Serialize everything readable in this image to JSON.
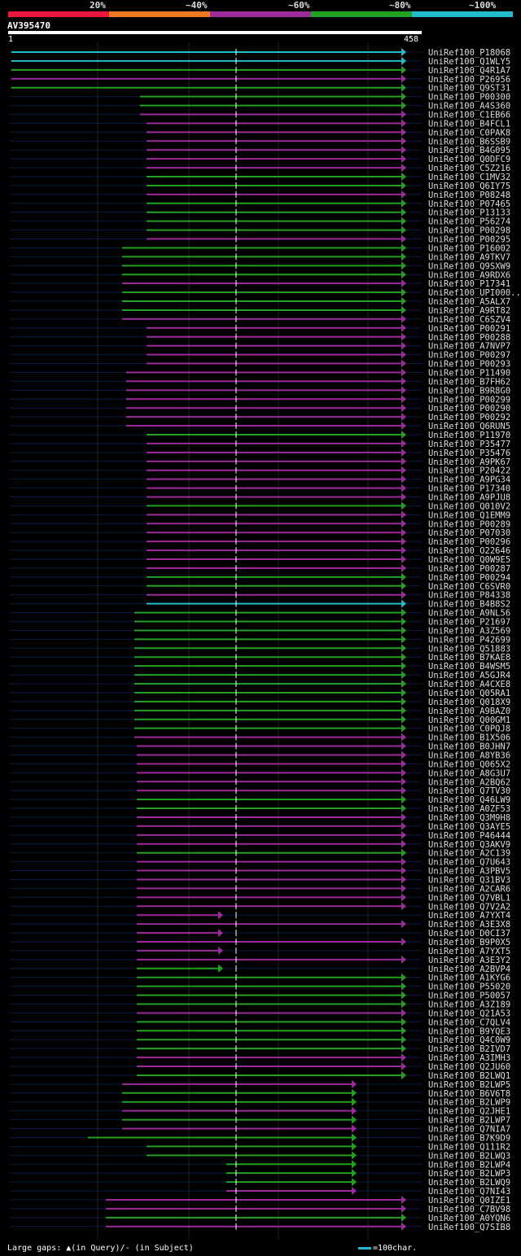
{
  "legend": {
    "labels": [
      "20%",
      "~40%",
      "~60%",
      "~80%",
      "~100%"
    ],
    "colors": [
      "#e8163c",
      "#f07820",
      "#9b2a9b",
      "#22a022",
      "#22bbcc"
    ]
  },
  "query": {
    "id": "AV395470",
    "start": "1",
    "end": "458"
  },
  "footer": {
    "note": "Large gaps: ▲(in Query)/- (in Subject)",
    "scale": "=100char."
  },
  "colors": {
    "cyan": "#22bbcc",
    "green": "#22a022",
    "purple": "#9b2a9b",
    "guide": "#0a1a44"
  },
  "chart_data": {
    "type": "alignment_overview",
    "hits": [
      {
        "id": "UniRef100_P18068",
        "color": "cyan"
      },
      {
        "id": "UniRef100_Q1WLY5",
        "color": "cyan"
      },
      {
        "id": "UniRef100_Q4R1A7",
        "color": "green"
      },
      {
        "id": "UniRef100_P26956",
        "color": "purple"
      },
      {
        "id": "UniRef100_Q9ST31",
        "color": "green"
      },
      {
        "id": "UniRef100_P00300",
        "color": "green"
      },
      {
        "id": "UniRef100_A4S360",
        "color": "green"
      },
      {
        "id": "UniRef100_C1EB66",
        "color": "purple"
      },
      {
        "id": "UniRef100_B4FCL1",
        "color": "purple"
      },
      {
        "id": "UniRef100_C0PAK8",
        "color": "purple"
      },
      {
        "id": "UniRef100_B6SSB9",
        "color": "purple"
      },
      {
        "id": "UniRef100_B4G095",
        "color": "purple"
      },
      {
        "id": "UniRef100_Q0DFC9",
        "color": "purple"
      },
      {
        "id": "UniRef100_C5Z216",
        "color": "purple"
      },
      {
        "id": "UniRef100_C1MV32",
        "color": "green"
      },
      {
        "id": "UniRef100_Q6IY75",
        "color": "green"
      },
      {
        "id": "UniRef100_P08248",
        "color": "purple"
      },
      {
        "id": "UniRef100_P07465",
        "color": "green"
      },
      {
        "id": "UniRef100_P13133",
        "color": "green"
      },
      {
        "id": "UniRef100_P56274",
        "color": "green"
      },
      {
        "id": "UniRef100_P00298",
        "color": "green"
      },
      {
        "id": "UniRef100_P00295",
        "color": "purple"
      },
      {
        "id": "UniRef100_P16002",
        "color": "green"
      },
      {
        "id": "UniRef100_A9TKV7",
        "color": "green"
      },
      {
        "id": "UniRef100_Q9SXW9",
        "color": "green"
      },
      {
        "id": "UniRef100_A9RDX6",
        "color": "green"
      },
      {
        "id": "UniRef100_P17341",
        "color": "purple"
      },
      {
        "id": "UniRef100_UPI000...",
        "color": "green"
      },
      {
        "id": "UniRef100_A5ALX7",
        "color": "green"
      },
      {
        "id": "UniRef100_A9RT82",
        "color": "green"
      },
      {
        "id": "UniRef100_C6SZV4",
        "color": "purple"
      },
      {
        "id": "UniRef100_P00291",
        "color": "purple"
      },
      {
        "id": "UniRef100_P00288",
        "color": "purple"
      },
      {
        "id": "UniRef100_A7NVP7",
        "color": "purple"
      },
      {
        "id": "UniRef100_P00297",
        "color": "purple"
      },
      {
        "id": "UniRef100_P00293",
        "color": "purple"
      },
      {
        "id": "UniRef100_P11490",
        "color": "purple"
      },
      {
        "id": "UniRef100_B7FH62",
        "color": "purple"
      },
      {
        "id": "UniRef100_B9R8G0",
        "color": "purple"
      },
      {
        "id": "UniRef100_P00299",
        "color": "purple"
      },
      {
        "id": "UniRef100_P00290",
        "color": "purple"
      },
      {
        "id": "UniRef100_P00292",
        "color": "purple"
      },
      {
        "id": "UniRef100_Q6RUN5",
        "color": "purple"
      },
      {
        "id": "UniRef100_P11970",
        "color": "green"
      },
      {
        "id": "UniRef100_P35477",
        "color": "purple"
      },
      {
        "id": "UniRef100_P35476",
        "color": "purple"
      },
      {
        "id": "UniRef100_A9PK67",
        "color": "purple"
      },
      {
        "id": "UniRef100_P20422",
        "color": "purple"
      },
      {
        "id": "UniRef100_A9PG34",
        "color": "purple"
      },
      {
        "id": "UniRef100_P17340",
        "color": "purple"
      },
      {
        "id": "UniRef100_A9PJU8",
        "color": "purple"
      },
      {
        "id": "UniRef100_Q010V2",
        "color": "green"
      },
      {
        "id": "UniRef100_Q1EMM9",
        "color": "purple"
      },
      {
        "id": "UniRef100_P00289",
        "color": "purple"
      },
      {
        "id": "UniRef100_P07030",
        "color": "purple"
      },
      {
        "id": "UniRef100_P00296",
        "color": "purple"
      },
      {
        "id": "UniRef100_O22646",
        "color": "purple"
      },
      {
        "id": "UniRef100_Q0W9E5",
        "color": "purple"
      },
      {
        "id": "UniRef100_P00287",
        "color": "purple"
      },
      {
        "id": "UniRef100_P00294",
        "color": "green"
      },
      {
        "id": "UniRef100_C6SVR0",
        "color": "green"
      },
      {
        "id": "UniRef100_P84338",
        "color": "purple"
      },
      {
        "id": "UniRef100_B4B8S2",
        "color": "cyan"
      },
      {
        "id": "UniRef100_A9NL56",
        "color": "green"
      },
      {
        "id": "UniRef100_P21697",
        "color": "green"
      },
      {
        "id": "UniRef100_A3Z569",
        "color": "green"
      },
      {
        "id": "UniRef100_P42699",
        "color": "green"
      },
      {
        "id": "UniRef100_Q51883",
        "color": "green"
      },
      {
        "id": "UniRef100_B7KAE8",
        "color": "green"
      },
      {
        "id": "UniRef100_B4WSM5",
        "color": "green"
      },
      {
        "id": "UniRef100_A5GJR4",
        "color": "green"
      },
      {
        "id": "UniRef100_A4CXE8",
        "color": "green"
      },
      {
        "id": "UniRef100_Q05RA1",
        "color": "green"
      },
      {
        "id": "UniRef100_Q018X9",
        "color": "green"
      },
      {
        "id": "UniRef100_A9BAZ0",
        "color": "green"
      },
      {
        "id": "UniRef100_Q00GM1",
        "color": "green"
      },
      {
        "id": "UniRef100_C0PQJ8",
        "color": "green"
      },
      {
        "id": "UniRef100_B1X506",
        "color": "purple"
      },
      {
        "id": "UniRef100_B0JHN7",
        "color": "purple"
      },
      {
        "id": "UniRef100_A8YB36",
        "color": "purple"
      },
      {
        "id": "UniRef100_Q065X2",
        "color": "purple"
      },
      {
        "id": "UniRef100_A8G3U7",
        "color": "purple"
      },
      {
        "id": "UniRef100_A2BQ62",
        "color": "purple"
      },
      {
        "id": "UniRef100_Q7TV30",
        "color": "purple"
      },
      {
        "id": "UniRef100_Q46LW9",
        "color": "green"
      },
      {
        "id": "UniRef100_A0ZF53",
        "color": "green"
      },
      {
        "id": "UniRef100_Q3M9H8",
        "color": "purple"
      },
      {
        "id": "UniRef100_Q3AYE5",
        "color": "purple"
      },
      {
        "id": "UniRef100_P46444",
        "color": "purple"
      },
      {
        "id": "UniRef100_Q3AKV9",
        "color": "purple"
      },
      {
        "id": "UniRef100_A2C139",
        "color": "green"
      },
      {
        "id": "UniRef100_Q7U643",
        "color": "purple"
      },
      {
        "id": "UniRef100_A3PBV5",
        "color": "purple"
      },
      {
        "id": "UniRef100_Q31BV3",
        "color": "purple"
      },
      {
        "id": "UniRef100_A2CAR6",
        "color": "purple"
      },
      {
        "id": "UniRef100_Q7VBL1",
        "color": "purple"
      },
      {
        "id": "UniRef100_Q7V2A2",
        "color": "purple"
      },
      {
        "id": "UniRef100_A7YXT4",
        "color": "purple"
      },
      {
        "id": "UniRef100_A3E3X8",
        "color": "purple"
      },
      {
        "id": "UniRef100_D0CI37",
        "color": "purple"
      },
      {
        "id": "UniRef100_B9P0X5",
        "color": "purple"
      },
      {
        "id": "UniRef100_A7YXT5",
        "color": "purple"
      },
      {
        "id": "UniRef100_A3E3Y2",
        "color": "purple"
      },
      {
        "id": "UniRef100_A2BVP4",
        "color": "green"
      },
      {
        "id": "UniRef100_A1KYG6",
        "color": "green"
      },
      {
        "id": "UniRef100_P55020",
        "color": "green"
      },
      {
        "id": "UniRef100_P50057",
        "color": "green"
      },
      {
        "id": "UniRef100_A3Z189",
        "color": "green"
      },
      {
        "id": "UniRef100_Q21A53",
        "color": "purple"
      },
      {
        "id": "UniRef100_C7QLV4",
        "color": "green"
      },
      {
        "id": "UniRef100_B9YQE3",
        "color": "green"
      },
      {
        "id": "UniRef100_Q4C0W9",
        "color": "green"
      },
      {
        "id": "UniRef100_B2IVD7",
        "color": "green"
      },
      {
        "id": "UniRef100_A3IMH3",
        "color": "purple"
      },
      {
        "id": "UniRef100_Q2JU60",
        "color": "purple"
      },
      {
        "id": "UniRef100_B2LWQ1",
        "color": "green"
      },
      {
        "id": "UniRef100_B2LWP5",
        "color": "purple"
      },
      {
        "id": "UniRef100_B6V6T8",
        "color": "green"
      },
      {
        "id": "UniRef100_B2LWP9",
        "color": "green"
      },
      {
        "id": "UniRef100_Q2JHE1",
        "color": "purple"
      },
      {
        "id": "UniRef100_B2LWP7",
        "color": "green"
      },
      {
        "id": "UniRef100_Q7NIA7",
        "color": "purple"
      },
      {
        "id": "UniRef100_B7K9D9",
        "color": "green"
      },
      {
        "id": "UniRef100_Q111R2",
        "color": "green"
      },
      {
        "id": "UniRef100_B2LWQ3",
        "color": "green"
      },
      {
        "id": "UniRef100_B2LWP4",
        "color": "green"
      },
      {
        "id": "UniRef100_B2LWP3",
        "color": "green"
      },
      {
        "id": "UniRef100_B2LWQ9",
        "color": "green"
      },
      {
        "id": "UniRef100_Q7NI43",
        "color": "purple"
      },
      {
        "id": "UniRef100_Q0IZE1",
        "color": "purple"
      },
      {
        "id": "UniRef100_C7BV98",
        "color": "purple"
      },
      {
        "id": "UniRef100_A0YQN6",
        "color": "green"
      },
      {
        "id": "UniRef100_Q7SIB8",
        "color": "purple"
      }
    ]
  }
}
